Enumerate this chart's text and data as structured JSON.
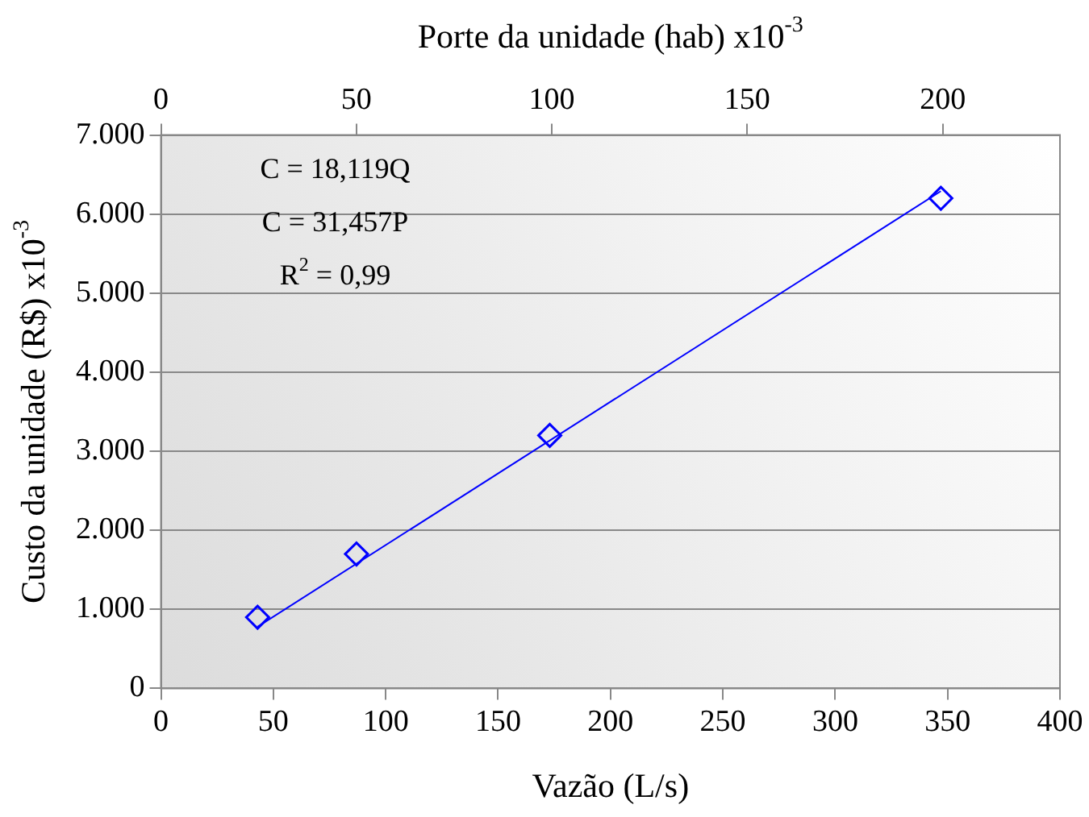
{
  "chart_data": {
    "type": "scatter",
    "xlabel": "Vazão (L/s)",
    "ylabel": "Custo da unidade (R$) x10$^{-3}$",
    "x2label": "Porte da unidade (hab) x10$^{-3}$",
    "x": [
      43,
      87,
      173,
      347
    ],
    "series": [
      {
        "color": "#0000ff",
        "values": [
          900,
          1700,
          3200,
          6200
        ],
        "marker": "diamond"
      },
      {
        "type": "line",
        "x": [
          43,
          347
        ],
        "values": [
          780,
          6290
        ],
        "color": "#0000ff",
        "marker": "none"
      }
    ],
    "xlim": [
      0,
      400
    ],
    "xticks": [
      0,
      50,
      100,
      150,
      200,
      250,
      300,
      350,
      400
    ],
    "x2lim": [
      0,
      230
    ],
    "x2ticks": [
      0,
      50,
      100,
      150,
      200
    ],
    "ylim": [
      0,
      7000
    ],
    "yticks": [
      0,
      {
        "value": 1000,
        "label": "1.000"
      },
      {
        "value": 2000,
        "label": "2.000"
      },
      {
        "value": 3000,
        "label": "3.000"
      },
      {
        "value": 4000,
        "label": "4.000"
      },
      {
        "value": 5000,
        "label": "5.000"
      },
      {
        "value": 6000,
        "label": "6.000"
      },
      {
        "value": 7000,
        "label": "7.000"
      }
    ],
    "grid": "y",
    "legend": false,
    "annotations": [
      "C = 18,119Q",
      "C = 31,457P",
      "R$^{2}$ = 0,99"
    ]
  }
}
